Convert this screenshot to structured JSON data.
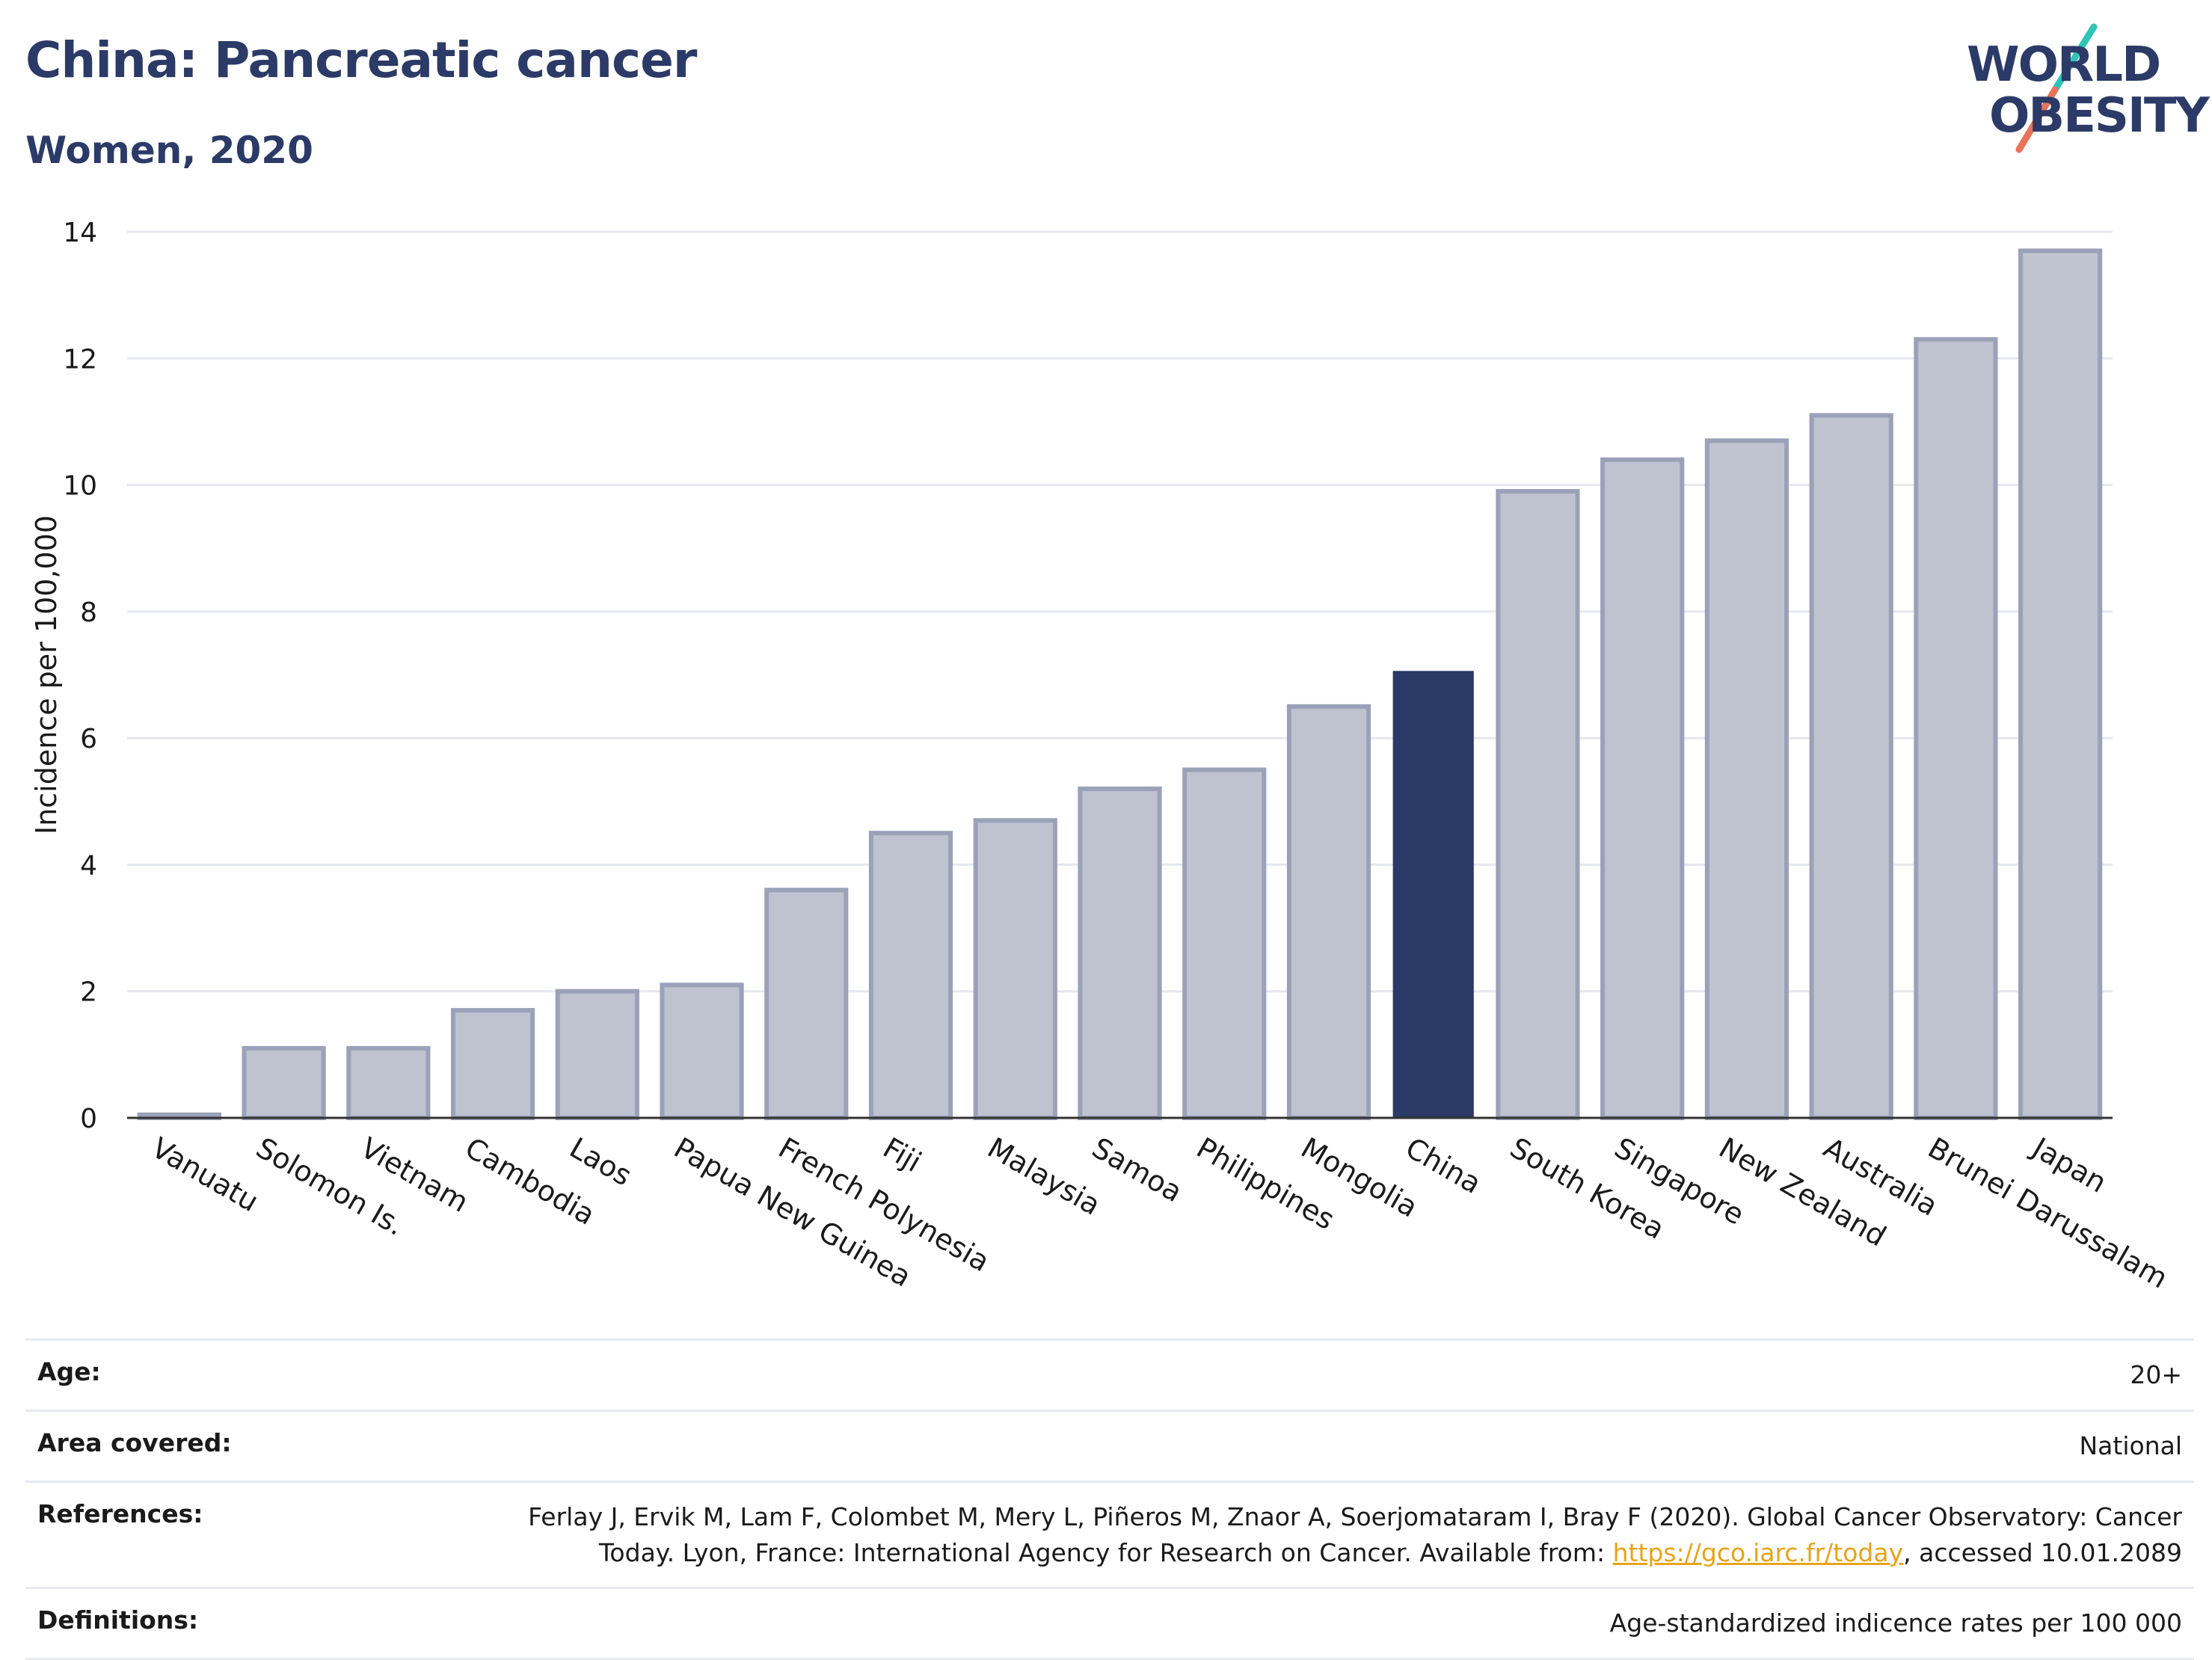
{
  "header": {
    "title": "China: Pancreatic cancer",
    "subtitle": "Women, 2020",
    "logo_line1": "WORLD",
    "logo_line2": "OBESITY"
  },
  "colors": {
    "highlight_bar": "#2b3a67",
    "other_bar_fill": "#bfc3d0",
    "other_bar_stroke": "#9aa1b8",
    "logo_navy": "#2b3a67",
    "logo_teal": "#2ec4b6",
    "logo_coral": "#e8735a",
    "link": "#e8a317"
  },
  "chart_data": {
    "type": "bar",
    "title": "China: Pancreatic cancer",
    "subtitle": "Women, 2020",
    "ylabel": "Incidence per 100,000",
    "xlabel": "",
    "ylim": [
      0,
      14
    ],
    "yticks": [
      0,
      2,
      4,
      6,
      8,
      10,
      12,
      14
    ],
    "grid": true,
    "highlight": "China",
    "categories": [
      "Vanuatu",
      "Solomon Is.",
      "Vietnam",
      "Cambodia",
      "Laos",
      "Papua New Guinea",
      "French Polynesia",
      "Fiji",
      "Malaysia",
      "Samoa",
      "Philippines",
      "Mongolia",
      "China",
      "South Korea",
      "Singapore",
      "New Zealand",
      "Australia",
      "Brunei Darussalam",
      "Japan"
    ],
    "values": [
      0.05,
      1.1,
      1.1,
      1.7,
      2.0,
      2.1,
      3.6,
      4.5,
      4.7,
      5.2,
      5.5,
      6.5,
      7.05,
      9.9,
      10.4,
      10.7,
      11.1,
      12.3,
      13.7
    ]
  },
  "info": {
    "age_label": "Age:",
    "age_value": "20+",
    "area_label": "Area covered:",
    "area_value": "National",
    "references_label": "References:",
    "references_text1": "Ferlay J, Ervik M, Lam F, Colombet M, Mery L, Piñeros M, Znaor A, Soerjomataram I, Bray F (2020). Global Cancer Observatory: Cancer",
    "references_text2": "Today. Lyon, France: International Agency for Research on Cancer. Available from:",
    "references_link": "https://gco.iarc.fr/today",
    "references_text3": ", accessed 10.01.2089",
    "definitions_label": "Definitions:",
    "definitions_value": "Age-standardized indicence rates per 100 000"
  }
}
